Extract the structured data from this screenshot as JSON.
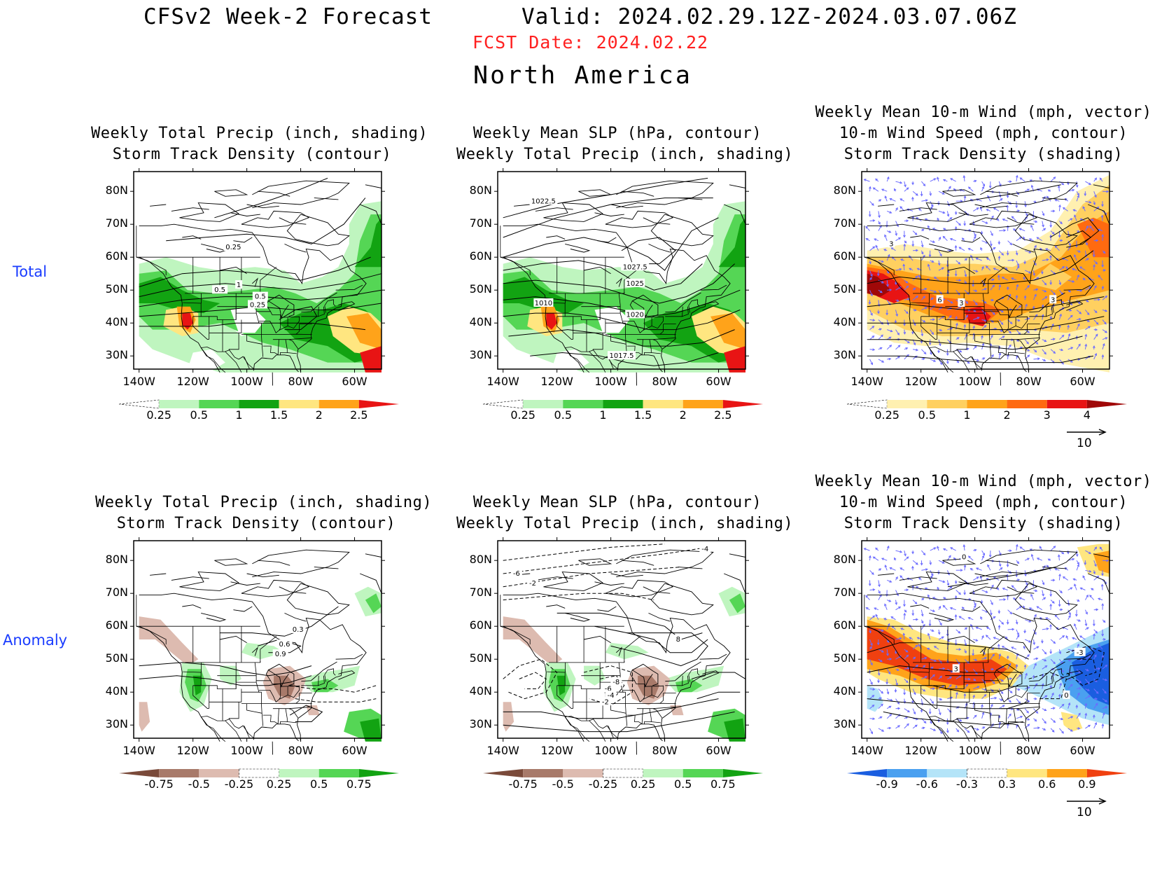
{
  "header": {
    "title": "CFSv2 Week-2 Forecast",
    "valid": "Valid: 2024.02.29.12Z-2024.03.07.06Z",
    "fcst_date": "FCST Date: 2024.02.22",
    "region": "North America"
  },
  "rows": {
    "total": "Total",
    "anomaly": "Anomaly"
  },
  "axes": {
    "lat_labels": [
      "80N",
      "70N",
      "60N",
      "50N",
      "40N",
      "30N"
    ],
    "lon_labels": [
      "140W",
      "120W",
      "100W",
      "80W",
      "60W"
    ]
  },
  "panels": [
    {
      "title1": "Weekly Total Precip (inch, shading)",
      "title2": "Storm Track Density (contour)",
      "title3": ""
    },
    {
      "title1": "Weekly Mean SLP (hPa, contour)",
      "title2": "Weekly Total Precip (inch, shading)",
      "title3": ""
    },
    {
      "title1": "Weekly Mean 10-m Wind (mph, vector)",
      "title2": "10-m Wind Speed (mph, contour)",
      "title3": "Storm Track Density (shading)"
    },
    {
      "title1": "Weekly Total Precip (inch, shading)",
      "title2": "Storm Track Density (contour)",
      "title3": ""
    },
    {
      "title1": "Weekly Mean SLP (hPa, contour)",
      "title2": "Weekly Total Precip (inch, shading)",
      "title3": ""
    },
    {
      "title1": "Weekly Mean 10-m Wind (mph, vector)",
      "title2": "10-m Wind Speed (mph, contour)",
      "title3": "Storm Track Density (shading)"
    }
  ],
  "contour_labels": {
    "p0": [
      "0.25",
      "0.5",
      "1",
      "0.5",
      "0.25"
    ],
    "p1": [
      "1022.5",
      "1027.5",
      "1025",
      "1010",
      "1020",
      "1017.5"
    ],
    "p2": [
      "3",
      "6",
      "3",
      "3"
    ],
    "p3": [
      "0.3",
      "0.6",
      "0.9"
    ],
    "p4": [
      "-6",
      "-2",
      "-4",
      "-8",
      "-6",
      "-4",
      "-2",
      "8"
    ],
    "p5": [
      "0",
      "-3",
      "3",
      "0"
    ]
  },
  "colorbars": {
    "precip_total": {
      "labels": [
        "0.25",
        "0.5",
        "1",
        "1.5",
        "2",
        "2.5"
      ],
      "colors": [
        "#ffffff",
        "#bff5bf",
        "#55d655",
        "#12a312",
        "#ffe680",
        "#ffa31a",
        "#e81414"
      ]
    },
    "storm_total": {
      "labels": [
        "0.25",
        "0.5",
        "1",
        "2",
        "3",
        "4"
      ],
      "colors": [
        "#ffffff",
        "#fff0b0",
        "#ffd060",
        "#ffa31a",
        "#ff6a10",
        "#e81414",
        "#a00808"
      ]
    },
    "precip_anom": {
      "labels": [
        "-0.75",
        "-0.5",
        "-0.25",
        "0.25",
        "0.5",
        "0.75"
      ],
      "colors": [
        "#7a4a3a",
        "#a87a6a",
        "#ddbbb0",
        "#ffffff",
        "#bff5bf",
        "#55d655",
        "#12a312"
      ]
    },
    "storm_anom": {
      "labels": [
        "-0.9",
        "-0.6",
        "-0.3",
        "0.3",
        "0.6",
        "0.9"
      ],
      "colors": [
        "#1a5ee0",
        "#4aa0f0",
        "#b4e4f8",
        "#ffffff",
        "#ffe680",
        "#ffa31a",
        "#f04010"
      ]
    }
  },
  "vector_ref": "10"
}
